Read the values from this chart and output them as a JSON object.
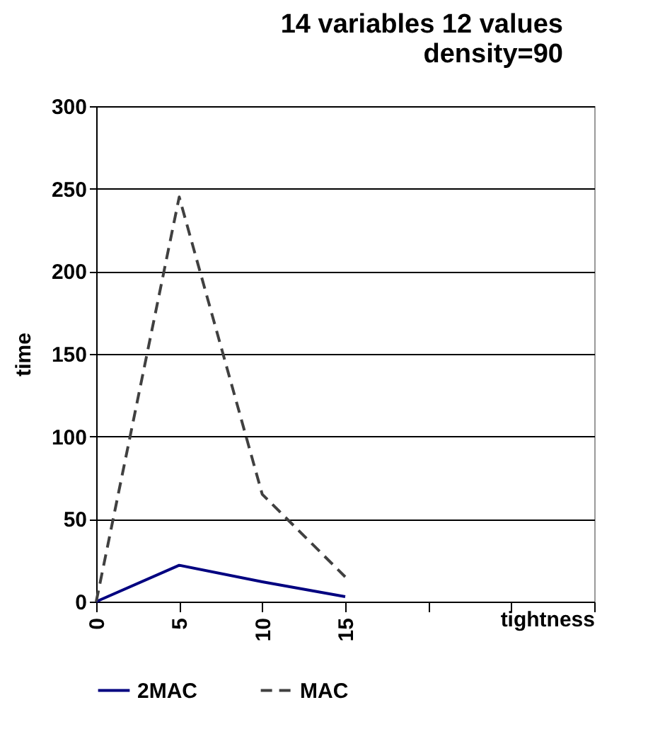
{
  "chart_data": {
    "type": "line",
    "title": [
      "14 variables    12 values",
      "density=90"
    ],
    "xlabel": "tightness",
    "ylabel": "time",
    "categories": [
      "0",
      "5",
      "10",
      "15",
      null,
      null,
      null
    ],
    "series": [
      {
        "name": "2MAC",
        "color": "#000080",
        "line_style": "solid",
        "values": [
          0,
          22,
          12,
          3,
          null,
          null,
          null
        ]
      },
      {
        "name": "MAC",
        "color": "#404040",
        "line_style": "dashed",
        "values": [
          0,
          245,
          65,
          15,
          null,
          null,
          null
        ]
      }
    ],
    "ylim": [
      0,
      300
    ],
    "yticks": [
      0,
      50,
      100,
      150,
      200,
      250,
      300
    ],
    "grid": "y",
    "legend": "bottom",
    "marker": "none"
  }
}
